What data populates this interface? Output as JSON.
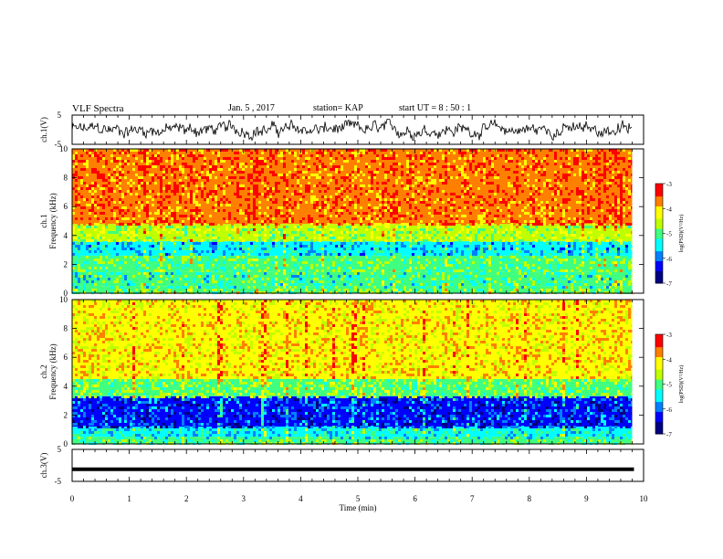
{
  "header": {
    "title": "VLF Spectra",
    "date": "Jan. 5 , 2017",
    "station": "station= KAP",
    "start": "start UT = 8 : 50 : 1"
  },
  "chart_data": [
    {
      "type": "line",
      "panel": "ch1-waveform",
      "ylabel": "ch.1(V)",
      "ylim": [
        -5,
        5
      ],
      "yticks": [
        "5",
        "-5"
      ],
      "xlim": [
        0,
        10
      ],
      "note_color": "#000000"
    },
    {
      "type": "heatmap",
      "panel": "ch1-spectrogram",
      "ylabel_top": "ch.1",
      "ylabel": "Frequency (kHz)",
      "ylim": [
        0,
        10
      ],
      "yticks": [
        "0",
        "2",
        "4",
        "6",
        "8",
        "10"
      ],
      "xlim": [
        0,
        10
      ],
      "colorbar": {
        "label": "log(PSD)(V²/Hz)",
        "range": [
          -7,
          -3
        ],
        "ticks": [
          "-3",
          "-4",
          "-5",
          "-6",
          "-7"
        ]
      },
      "bands": [
        {
          "from": 0,
          "to": 0.5,
          "level": 0.55
        },
        {
          "from": 0.5,
          "to": 1.5,
          "level": 0.45
        },
        {
          "from": 1.5,
          "to": 2.6,
          "level": 0.5
        },
        {
          "from": 2.6,
          "to": 3.6,
          "level": 0.35
        },
        {
          "from": 3.6,
          "to": 4.8,
          "level": 0.6
        },
        {
          "from": 4.8,
          "to": 10,
          "level": 0.85
        }
      ]
    },
    {
      "type": "heatmap",
      "panel": "ch2-spectrogram",
      "ylabel_top": "ch.2",
      "ylabel": "Frequency (kHz)",
      "ylim": [
        0,
        10
      ],
      "yticks": [
        "0",
        "2",
        "4",
        "6",
        "8",
        "10"
      ],
      "xlim": [
        0,
        10
      ],
      "colorbar": {
        "label": "log(PSD)(V²/Hz)",
        "range": [
          -7,
          -3
        ],
        "ticks": [
          "-3",
          "-4",
          "-5",
          "-6",
          "-7"
        ]
      },
      "bands": [
        {
          "from": 0,
          "to": 0.5,
          "level": 0.5
        },
        {
          "from": 0.5,
          "to": 1.2,
          "level": 0.4
        },
        {
          "from": 1.2,
          "to": 3.3,
          "level": 0.2
        },
        {
          "from": 3.3,
          "to": 4.5,
          "level": 0.55
        },
        {
          "from": 4.5,
          "to": 10,
          "level": 0.72
        }
      ]
    },
    {
      "type": "line",
      "panel": "ch3-waveform",
      "ylabel": "ch.3(V)",
      "ylim": [
        -5,
        5
      ],
      "yticks": [
        "5",
        "-5"
      ],
      "xlim": [
        0,
        10
      ],
      "constant_value": -1.2
    }
  ],
  "xaxis": {
    "label": "Time (min)",
    "ticks": [
      "0",
      "1",
      "2",
      "3",
      "4",
      "5",
      "6",
      "7",
      "8",
      "9",
      "10"
    ]
  },
  "colormap": [
    "#000080",
    "#0000ff",
    "#0080ff",
    "#00ffff",
    "#40ff80",
    "#c0ff00",
    "#ffff00",
    "#ff8000",
    "#ff0000",
    "#ffffff"
  ]
}
